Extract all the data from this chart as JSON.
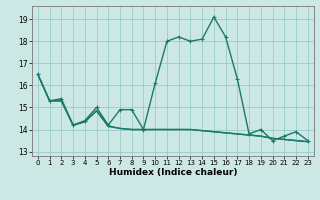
{
  "xlabel": "Humidex (Indice chaleur)",
  "background_color": "#cce8e4",
  "grid_color": "#99cccc",
  "line_color": "#1a7a6a",
  "ylim": [
    12.8,
    19.6
  ],
  "xlim": [
    -0.5,
    23.5
  ],
  "yticks": [
    13,
    14,
    15,
    16,
    17,
    18,
    19
  ],
  "x_ticks": [
    0,
    1,
    2,
    3,
    4,
    5,
    6,
    7,
    8,
    9,
    10,
    11,
    12,
    13,
    14,
    15,
    16,
    17,
    18,
    19,
    20,
    21,
    22,
    23
  ],
  "main_series": [
    16.5,
    15.3,
    15.4,
    14.2,
    14.4,
    15.0,
    14.2,
    14.9,
    14.9,
    14.0,
    16.1,
    18.0,
    18.2,
    18.0,
    18.1,
    19.1,
    18.2,
    16.3,
    13.8,
    14.0,
    13.5,
    13.7,
    13.9,
    13.5
  ],
  "line2": [
    16.5,
    15.3,
    15.3,
    14.2,
    14.35,
    14.85,
    14.15,
    14.05,
    14.0,
    14.0,
    14.0,
    14.0,
    14.0,
    14.0,
    13.95,
    13.9,
    13.85,
    13.8,
    13.75,
    13.7,
    13.6,
    13.55,
    13.5,
    13.45
  ],
  "line3": [
    16.5,
    15.3,
    15.3,
    14.2,
    14.35,
    14.85,
    14.15,
    14.05,
    14.0,
    14.0,
    14.0,
    14.0,
    14.0,
    14.0,
    13.95,
    13.9,
    13.85,
    13.8,
    13.75,
    13.7,
    13.6,
    13.55,
    13.5,
    13.45
  ]
}
